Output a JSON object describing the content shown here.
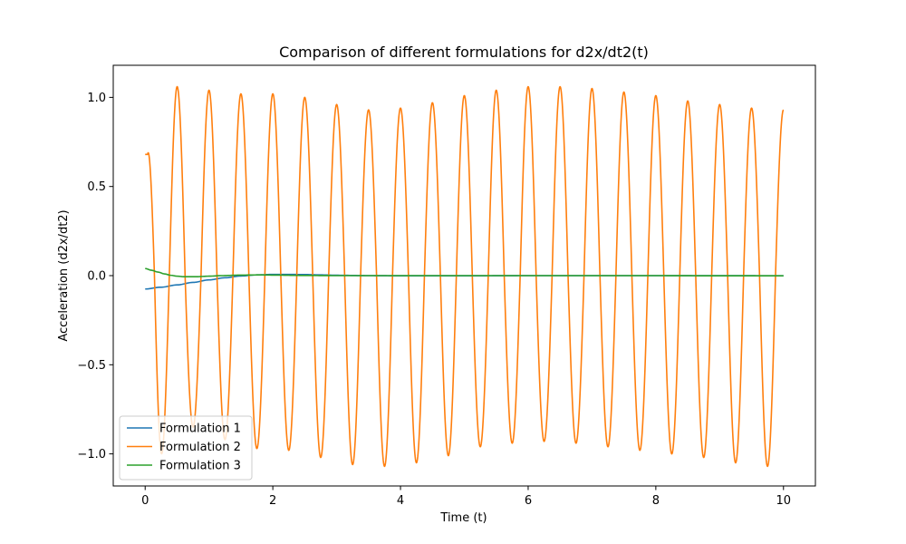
{
  "chart_data": {
    "type": "line",
    "title": "Comparison of different formulations for d2x/dt2(t)",
    "xlabel": "Time (t)",
    "ylabel": "Acceleration (d2x/dt2)",
    "xlim": [
      -0.5,
      10.5
    ],
    "ylim": [
      -1.18,
      1.18
    ],
    "xticks": [
      0,
      2,
      4,
      6,
      8,
      10
    ],
    "xtick_labels": [
      "0",
      "2",
      "4",
      "6",
      "8",
      "10"
    ],
    "yticks": [
      -1.0,
      -0.5,
      0.0,
      0.5,
      1.0
    ],
    "ytick_labels": [
      "−1.0",
      "−0.5",
      "0.0",
      "0.5",
      "1.0"
    ],
    "grid": false,
    "legend_position": "lower-left",
    "series": [
      {
        "name": "Formulation 1",
        "color": "#1f77b4",
        "x": [
          0,
          0.25,
          0.5,
          0.75,
          1.0,
          1.25,
          1.5,
          1.75,
          2.0,
          2.25,
          2.5,
          2.75,
          3.0,
          3.5,
          4.0,
          5.0,
          6.0,
          7.0,
          8.0,
          9.0,
          10.0
        ],
        "y": [
          -0.075,
          -0.065,
          -0.052,
          -0.038,
          -0.024,
          -0.012,
          -0.002,
          0.004,
          0.007,
          0.007,
          0.006,
          0.004,
          0.002,
          0.0,
          -0.001,
          -0.001,
          0.0,
          0.0,
          0.0,
          0.0,
          -0.001
        ]
      },
      {
        "name": "Formulation 2",
        "color": "#ff7f0e",
        "peaks_x": [
          0,
          0.5,
          1.0,
          1.5,
          2.0,
          2.5,
          3.0,
          3.5,
          4.0,
          4.5,
          5.0,
          5.5,
          6.0,
          6.5,
          7.0,
          7.5,
          8.0,
          8.5,
          9.0,
          9.5,
          10.0
        ],
        "peaks_y": [
          0.68,
          1.06,
          1.04,
          1.02,
          1.02,
          1.0,
          0.96,
          0.93,
          0.94,
          0.97,
          1.01,
          1.04,
          1.06,
          1.06,
          1.05,
          1.03,
          1.01,
          0.98,
          0.96,
          0.94,
          0.93
        ],
        "troughs_x": [
          0.24,
          0.74,
          1.24,
          1.74,
          2.24,
          2.74,
          3.24,
          3.74,
          4.24,
          4.74,
          5.24,
          5.74,
          6.24,
          6.74,
          7.24,
          7.74,
          8.24,
          8.74,
          9.24,
          9.74
        ],
        "troughs_y": [
          -1.0,
          -0.85,
          -0.92,
          -0.97,
          -0.98,
          -1.02,
          -1.06,
          -1.07,
          -1.05,
          -1.01,
          -0.96,
          -0.94,
          -0.93,
          -0.94,
          -0.96,
          -0.98,
          -1.0,
          -1.02,
          -1.05,
          -1.07
        ]
      },
      {
        "name": "Formulation 3",
        "color": "#2ca02c",
        "x": [
          0,
          0.1,
          0.2,
          0.3,
          0.4,
          0.5,
          0.6,
          0.8,
          1.0,
          1.2,
          1.5,
          1.8,
          2.0,
          2.5,
          3.0,
          4.0,
          5.0,
          6.0,
          7.0,
          8.0,
          9.0,
          10.0
        ],
        "y": [
          0.04,
          0.03,
          0.02,
          0.01,
          0.002,
          -0.003,
          -0.006,
          -0.006,
          -0.003,
          0.0,
          0.003,
          0.004,
          0.003,
          0.001,
          0.0,
          0.0,
          0.0,
          0.0,
          0.0,
          0.0,
          -0.001,
          -0.001
        ]
      }
    ]
  }
}
